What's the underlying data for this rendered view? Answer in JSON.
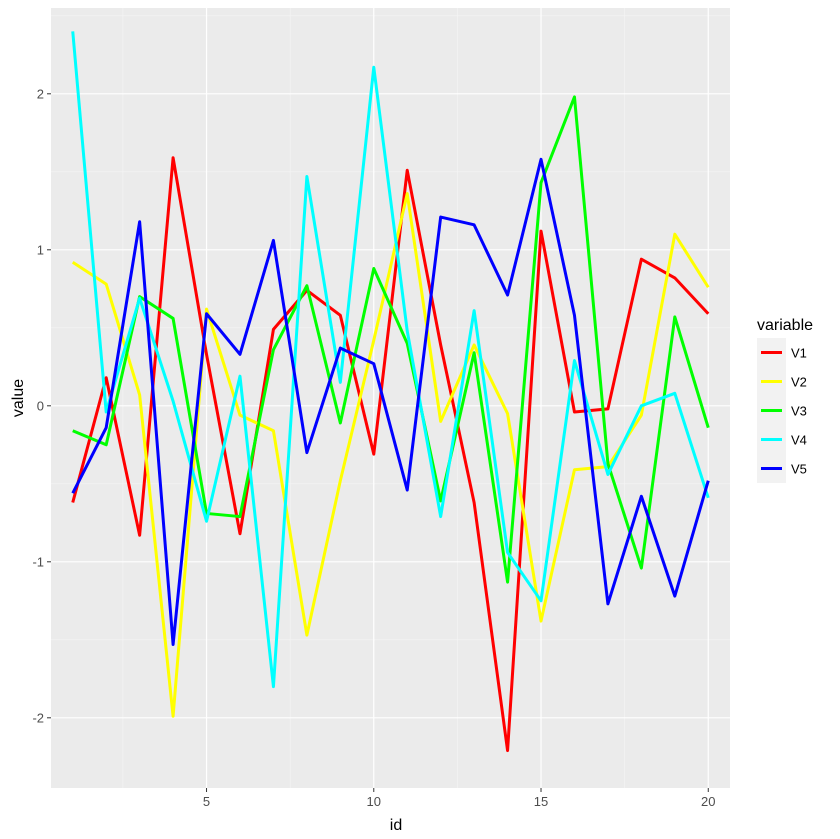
{
  "chart_data": {
    "type": "line",
    "title": "",
    "xlabel": "id",
    "ylabel": "value",
    "xlim": [
      0.35,
      20.65
    ],
    "ylim": [
      -2.45,
      2.55
    ],
    "x_ticks": [
      5,
      10,
      15,
      20
    ],
    "y_ticks": [
      -2,
      -1,
      0,
      1,
      2
    ],
    "grid": true,
    "legend": {
      "title": "variable",
      "position": "right"
    },
    "x": [
      1,
      2,
      3,
      4,
      5,
      6,
      7,
      8,
      9,
      10,
      11,
      12,
      13,
      14,
      15,
      16,
      17,
      18,
      19,
      20
    ],
    "series": [
      {
        "name": "V1",
        "color": "#ff0000",
        "values": [
          -0.62,
          0.18,
          -0.83,
          1.59,
          0.33,
          -0.82,
          0.49,
          0.74,
          0.58,
          -0.31,
          1.51,
          0.39,
          -0.62,
          -2.21,
          1.12,
          -0.04,
          -0.02,
          0.94,
          0.82,
          0.59
        ]
      },
      {
        "name": "V2",
        "color": "#ffff00",
        "values": [
          0.92,
          0.78,
          0.07,
          -1.99,
          0.62,
          -0.06,
          -0.16,
          -1.47,
          -0.48,
          0.42,
          1.36,
          -0.1,
          0.39,
          -0.05,
          -1.38,
          -0.41,
          -0.39,
          -0.06,
          1.1,
          0.76
        ]
      },
      {
        "name": "V3",
        "color": "#00ff00",
        "values": [
          -0.16,
          -0.25,
          0.7,
          0.56,
          -0.69,
          -0.71,
          0.36,
          0.77,
          -0.11,
          0.88,
          0.4,
          -0.61,
          0.34,
          -1.13,
          1.43,
          1.98,
          -0.37,
          -1.04,
          0.57,
          -0.14
        ]
      },
      {
        "name": "V4",
        "color": "#00ffff",
        "values": [
          2.4,
          -0.04,
          0.69,
          0.03,
          -0.74,
          0.19,
          -1.8,
          1.47,
          0.15,
          2.17,
          0.48,
          -0.71,
          0.61,
          -0.94,
          -1.25,
          0.29,
          -0.44,
          0.0,
          0.08,
          -0.59
        ]
      },
      {
        "name": "V5",
        "color": "#0000ff",
        "values": [
          -0.56,
          -0.14,
          1.18,
          -1.53,
          0.59,
          0.33,
          1.06,
          -0.3,
          0.37,
          0.27,
          -0.54,
          1.21,
          1.16,
          0.71,
          1.58,
          0.58,
          -1.27,
          -0.58,
          -1.22,
          -0.48
        ]
      }
    ]
  }
}
